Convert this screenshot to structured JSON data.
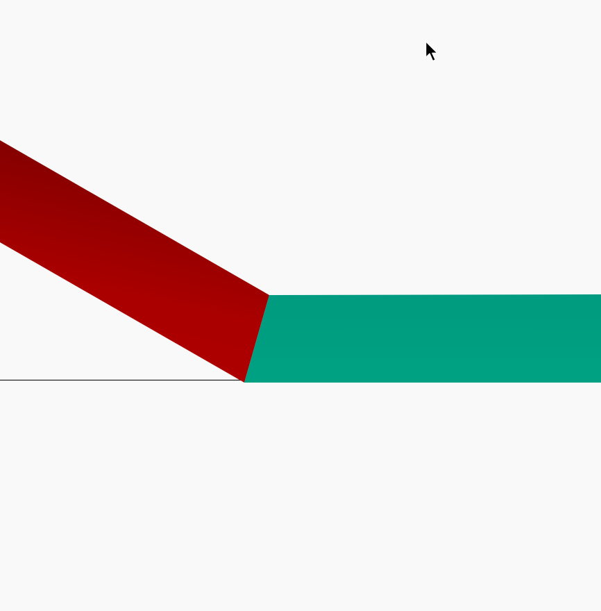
{
  "canvas": {
    "background_color": "#f9f9f9"
  },
  "ribbon": {
    "red_dark_color": "#800000",
    "red_light_color": "#b00000",
    "teal_color": "#009b80",
    "teal_light_color": "#00a182"
  },
  "baseline": {
    "color": "#222222"
  },
  "cursor": {
    "icon": "arrow-cursor-icon",
    "color": "#000000",
    "outline_color": "#ffffff"
  }
}
